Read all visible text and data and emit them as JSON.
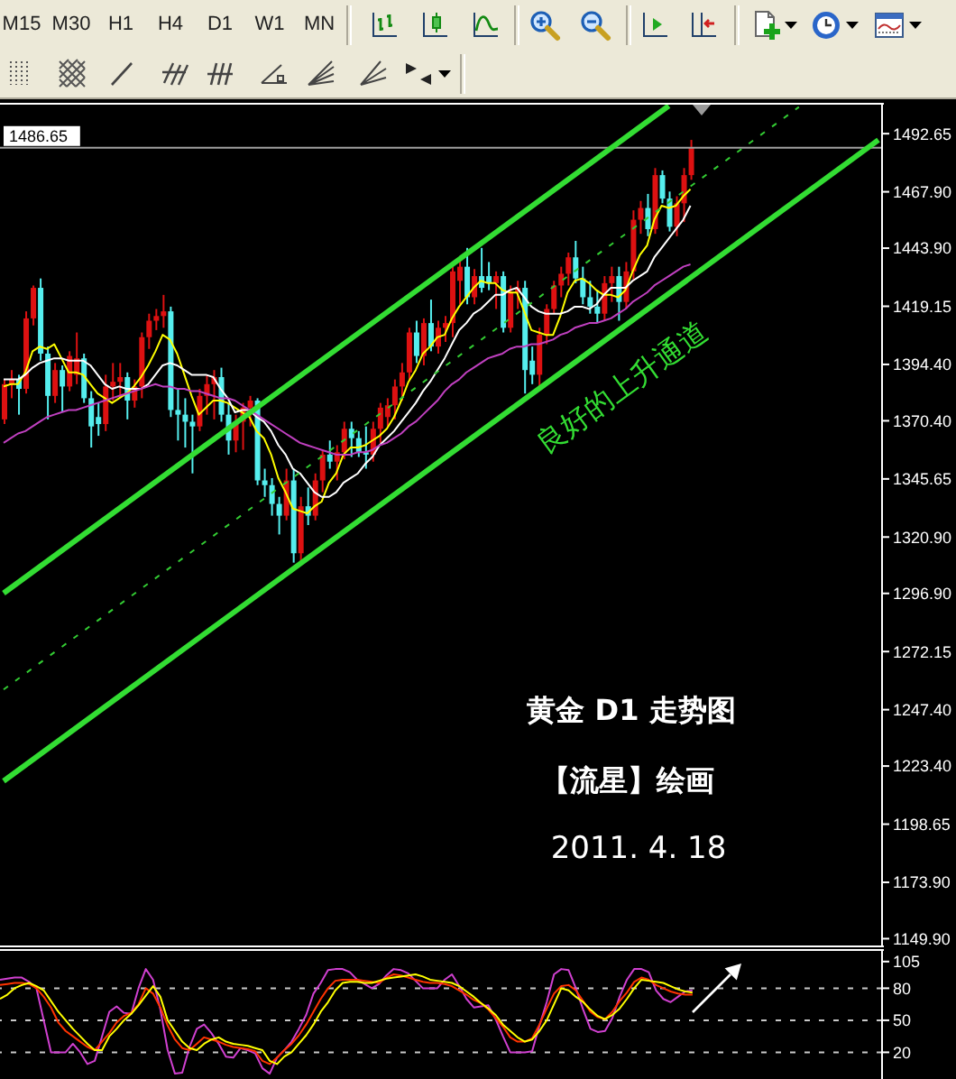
{
  "chart_data": [
    {
      "type": "other",
      "annotations": [
        "M15",
        "M30",
        "H1",
        "H4",
        "D1",
        "W1",
        "MN"
      ]
    },
    {
      "type": "candlestick",
      "categories": [
        null,
        null,
        null,
        null,
        null,
        null,
        null,
        null,
        null,
        null,
        null,
        null,
        null,
        null,
        null,
        null,
        null,
        null,
        null,
        null,
        null,
        null,
        null,
        null,
        null,
        null,
        null,
        null,
        null,
        null,
        null,
        null,
        null,
        null,
        null,
        null,
        null,
        null,
        null,
        null,
        null,
        null,
        null,
        null,
        null,
        null,
        null,
        null,
        null,
        null,
        null,
        null,
        null,
        null,
        null,
        null,
        null,
        null,
        null,
        null,
        null,
        null,
        null,
        null,
        null,
        null,
        null,
        null,
        null,
        null,
        null,
        null,
        null,
        null,
        null,
        null,
        null,
        null,
        null,
        null,
        null,
        null,
        null,
        null,
        null,
        null,
        null,
        null,
        null,
        null,
        null,
        null,
        null,
        null,
        null,
        null,
        null,
        null,
        null,
        null,
        null,
        null,
        null,
        null,
        null,
        null,
        null,
        null,
        null,
        null,
        null,
        null,
        null,
        null,
        null,
        null,
        null,
        null,
        null,
        null,
        null,
        null
      ],
      "ohlc": [
        [
          1371,
          1388,
          1369,
          1386
        ],
        [
          1386,
          1392,
          1380,
          1388
        ],
        [
          1388,
          1390,
          1373,
          1384
        ],
        [
          1384,
          1417,
          1382,
          1414
        ],
        [
          1414,
          1428,
          1411,
          1427
        ],
        [
          1427,
          1431,
          1396,
          1399
        ],
        [
          1399,
          1402,
          1371,
          1381
        ],
        [
          1381,
          1395,
          1378,
          1392
        ],
        [
          1392,
          1394,
          1374,
          1385
        ],
        [
          1385,
          1400,
          1383,
          1398
        ],
        [
          1390,
          1408,
          1386,
          1397
        ],
        [
          1397,
          1399,
          1378,
          1380
        ],
        [
          1380,
          1383,
          1359,
          1368
        ],
        [
          1372,
          1378,
          1364,
          1369
        ],
        [
          1369,
          1390,
          1366,
          1385
        ],
        [
          1385,
          1395,
          1379,
          1387
        ],
        [
          1387,
          1395,
          1380,
          1389
        ],
        [
          1389,
          1391,
          1371,
          1379
        ],
        [
          1379,
          1388,
          1376,
          1385
        ],
        [
          1385,
          1408,
          1380,
          1406
        ],
        [
          1406,
          1416,
          1401,
          1413
        ],
        [
          1413,
          1418,
          1409,
          1415
        ],
        [
          1415,
          1424,
          1410,
          1417
        ],
        [
          1417,
          1419,
          1372,
          1375
        ],
        [
          1375,
          1384,
          1362,
          1373
        ],
        [
          1373,
          1380,
          1359,
          1370
        ],
        [
          1370,
          1373,
          1348,
          1368
        ],
        [
          1368,
          1384,
          1366,
          1381
        ],
        [
          1381,
          1390,
          1373,
          1386
        ],
        [
          1386,
          1392,
          1371,
          1389
        ],
        [
          1389,
          1393,
          1370,
          1373
        ],
        [
          1373,
          1378,
          1356,
          1362
        ],
        [
          1362,
          1373,
          1357,
          1370
        ],
        [
          1370,
          1378,
          1358,
          1376
        ],
        [
          1376,
          1381,
          1368,
          1379
        ],
        [
          1379,
          1380,
          1343,
          1345
        ],
        [
          1345,
          1350,
          1338,
          1343
        ],
        [
          1343,
          1346,
          1330,
          1335
        ],
        [
          1335,
          1338,
          1322,
          1330
        ],
        [
          1330,
          1350,
          1328,
          1345
        ],
        [
          1345,
          1350,
          1310,
          1314
        ],
        [
          1314,
          1338,
          1309,
          1334
        ],
        [
          1334,
          1342,
          1326,
          1330
        ],
        [
          1330,
          1348,
          1328,
          1345
        ],
        [
          1345,
          1358,
          1340,
          1356
        ],
        [
          1356,
          1362,
          1350,
          1353
        ],
        [
          1353,
          1360,
          1345,
          1357
        ],
        [
          1357,
          1370,
          1354,
          1367
        ],
        [
          1367,
          1370,
          1355,
          1363
        ],
        [
          1363,
          1366,
          1355,
          1357
        ],
        [
          1357,
          1368,
          1350,
          1356
        ],
        [
          1356,
          1370,
          1353,
          1367
        ],
        [
          1367,
          1378,
          1361,
          1376
        ],
        [
          1372,
          1380,
          1368,
          1377
        ],
        [
          1377,
          1388,
          1371,
          1385
        ],
        [
          1385,
          1395,
          1379,
          1391
        ],
        [
          1391,
          1410,
          1388,
          1408
        ],
        [
          1408,
          1413,
          1395,
          1398
        ],
        [
          1398,
          1414,
          1394,
          1412
        ],
        [
          1412,
          1422,
          1400,
          1402
        ],
        [
          1402,
          1413,
          1399,
          1410
        ],
        [
          1410,
          1415,
          1404,
          1412
        ],
        [
          1412,
          1436,
          1406,
          1434
        ],
        [
          1430,
          1440,
          1420,
          1436
        ],
        [
          1436,
          1444,
          1420,
          1423
        ],
        [
          1423,
          1435,
          1420,
          1432
        ],
        [
          1432,
          1444,
          1425,
          1427
        ],
        [
          1432,
          1438,
          1426,
          1429
        ],
        [
          1429,
          1434,
          1418,
          1432
        ],
        [
          1432,
          1434,
          1408,
          1410
        ],
        [
          1410,
          1428,
          1408,
          1425
        ],
        [
          1425,
          1430,
          1418,
          1427
        ],
        [
          1427,
          1430,
          1382,
          1392
        ],
        [
          1396,
          1402,
          1386,
          1390
        ],
        [
          1390,
          1410,
          1385,
          1407
        ],
        [
          1407,
          1420,
          1403,
          1418
        ],
        [
          1418,
          1430,
          1416,
          1428
        ],
        [
          1428,
          1436,
          1423,
          1433
        ],
        [
          1433,
          1442,
          1428,
          1440
        ],
        [
          1440,
          1447,
          1429,
          1431
        ],
        [
          1431,
          1436,
          1420,
          1423
        ],
        [
          1423,
          1430,
          1416,
          1419
        ],
        [
          1419,
          1426,
          1412,
          1416
        ],
        [
          1416,
          1432,
          1413,
          1429
        ],
        [
          1429,
          1436,
          1421,
          1432
        ],
        [
          1432,
          1436,
          1413,
          1421
        ],
        [
          1421,
          1438,
          1418,
          1434
        ],
        [
          1434,
          1460,
          1430,
          1456
        ],
        [
          1456,
          1464,
          1450,
          1461
        ],
        [
          1461,
          1467,
          1449,
          1452
        ],
        [
          1452,
          1478,
          1450,
          1475
        ],
        [
          1475,
          1477,
          1463,
          1465
        ],
        [
          1465,
          1468,
          1451,
          1453
        ],
        [
          1453,
          1466,
          1449,
          1463
        ],
        [
          1463,
          1478,
          1455,
          1475
        ],
        [
          1475,
          1490,
          1473,
          1486.65
        ],
        null,
        null,
        null,
        null,
        null,
        null,
        null,
        null,
        null,
        null,
        null,
        null,
        null,
        null,
        null,
        null,
        null,
        null,
        null,
        null,
        null,
        null,
        null,
        null,
        null,
        null
      ],
      "colors": [
        "#dd1111",
        "#dd1111",
        "#55eeee",
        "#dd1111",
        "#dd1111",
        "#55eeee",
        "#55eeee",
        "#dd1111",
        "#55eeee",
        "#dd1111",
        "#dd1111",
        "#55eeee",
        "#55eeee",
        "#55eeee",
        "#dd1111",
        "#dd1111",
        "#dd1111",
        "#55eeee",
        "#dd1111",
        "#dd1111",
        "#dd1111",
        "#dd1111",
        "#dd1111",
        "#55eeee",
        "#55eeee",
        "#55eeee",
        "#55eeee",
        "#dd1111",
        "#dd1111",
        "#dd1111",
        "#55eeee",
        "#55eeee",
        "#dd1111",
        "#dd1111",
        "#dd1111",
        "#55eeee",
        "#55eeee",
        "#55eeee",
        "#55eeee",
        "#dd1111",
        "#55eeee",
        "#dd1111",
        "#55eeee",
        "#dd1111",
        "#dd1111",
        "#55eeee",
        "#dd1111",
        "#dd1111",
        "#55eeee",
        "#55eeee",
        "#55eeee",
        "#dd1111",
        "#dd1111",
        "#dd1111",
        "#dd1111",
        "#dd1111",
        "#dd1111",
        "#55eeee",
        "#dd1111",
        "#55eeee",
        "#dd1111",
        "#dd1111",
        "#dd1111",
        "#dd1111",
        "#55eeee",
        "#dd1111",
        "#55eeee",
        "#55eeee",
        "#dd1111",
        "#55eeee",
        "#dd1111",
        "#dd1111",
        "#55eeee",
        "#55eeee",
        "#dd1111",
        "#dd1111",
        "#dd1111",
        "#dd1111",
        "#dd1111",
        "#55eeee",
        "#55eeee",
        "#55eeee",
        "#55eeee",
        "#dd1111",
        "#dd1111",
        "#55eeee",
        "#dd1111",
        "#dd1111",
        "#dd1111",
        "#55eeee",
        "#dd1111",
        "#55eeee",
        "#55eeee",
        "#dd1111",
        "#dd1111",
        "#dd1111",
        null,
        null,
        null,
        null,
        null,
        null,
        null,
        null,
        null,
        null,
        null,
        null,
        null,
        null,
        null,
        null,
        null,
        null,
        null,
        null,
        null,
        null,
        null,
        null,
        null,
        null
      ],
      "series": [
        {
          "type": "line",
          "color": "#ffff00",
          "values": [
            1385,
            1386,
            1386,
            1391,
            1400,
            1402,
            1401,
            1403,
            1397,
            1391,
            1391,
            1390,
            1386,
            1382,
            1380,
            1378,
            1380,
            1382,
            1385,
            1389,
            1394,
            1400,
            1407,
            1405,
            1399,
            1390,
            1381,
            1373,
            1376,
            1379,
            1379,
            1378,
            1376,
            1374,
            1372,
            1366,
            1363,
            1356,
            1346,
            1340,
            1333,
            1332,
            1331,
            1334,
            1336,
            1344,
            1348,
            1356,
            1359,
            1359,
            1360,
            1362,
            1364,
            1367,
            1372,
            1379,
            1387,
            1392,
            1399,
            1402,
            1406,
            1407,
            1414,
            1419,
            1423,
            1427,
            1430,
            1429,
            1429,
            1426,
            1425,
            1425,
            1417,
            1409,
            1408,
            1407,
            1407,
            1415,
            1425,
            1430,
            1431,
            1429,
            1426,
            1424,
            1424,
            1423,
            1426,
            1434,
            1441,
            1445,
            1456,
            1462,
            1461,
            1462,
            1466,
            1469,
            null,
            null,
            null,
            null,
            null,
            null,
            null,
            null,
            null,
            null,
            null,
            null,
            null,
            null,
            null,
            null,
            null,
            null,
            null,
            null,
            null,
            null,
            null,
            null,
            null,
            null
          ]
        },
        {
          "type": "line",
          "color": "#ffffff",
          "values": [
            1388,
            1388,
            1388,
            1390,
            1393,
            1395,
            1396,
            1397,
            1397,
            1396,
            1396,
            1396,
            1394,
            1390,
            1386,
            1384,
            1385,
            1384,
            1384,
            1384,
            1386,
            1390,
            1394,
            1395,
            1394,
            1392,
            1390,
            1390,
            1390,
            1389,
            1384,
            1380,
            1374,
            1375,
            1375,
            1372,
            1370,
            1366,
            1360,
            1356,
            1350,
            1348,
            1344,
            1340,
            1338,
            1338,
            1340,
            1344,
            1346,
            1348,
            1352,
            1355,
            1360,
            1363,
            1366,
            1370,
            1374,
            1378,
            1383,
            1387,
            1392,
            1397,
            1403,
            1409,
            1412,
            1416,
            1418,
            1421,
            1424,
            1424,
            1426,
            1427,
            1423,
            1419,
            1417,
            1416,
            1416,
            1416,
            1417,
            1419,
            1419,
            1418,
            1420,
            1424,
            1427,
            1427,
            1427,
            1430,
            1432,
            1434,
            1440,
            1444,
            1448,
            1452,
            1456,
            1462,
            null,
            null,
            null,
            null,
            null,
            null,
            null,
            null,
            null,
            null,
            null,
            null,
            null,
            null,
            null,
            null,
            null,
            null,
            null,
            null,
            null,
            null,
            null,
            null,
            null,
            null
          ]
        },
        {
          "type": "line",
          "color": "#c040c0",
          "values": [
            1361,
            1363,
            1365,
            1366,
            1368,
            1370,
            1372,
            1373,
            1374,
            1375,
            1375,
            1376,
            1377,
            1378,
            1379,
            1380,
            1381,
            1382,
            1383,
            1384,
            1385,
            1386,
            1385,
            1385,
            1384,
            1384,
            1383,
            1383,
            1382,
            1381,
            1380,
            1380,
            1379,
            1377,
            1375,
            1373,
            1371,
            1369,
            1367,
            1365,
            1363,
            1361,
            1360,
            1359,
            1358,
            1357,
            1356,
            1356,
            1356,
            1357,
            1357,
            1358,
            1360,
            1361,
            1363,
            1365,
            1368,
            1370,
            1373,
            1376,
            1379,
            1383,
            1386,
            1388,
            1391,
            1393,
            1395,
            1397,
            1398,
            1399,
            1401,
            1402,
            1402,
            1403,
            1403,
            1404,
            1405,
            1407,
            1408,
            1410,
            1411,
            1412,
            1412,
            1413,
            1414,
            1416,
            1418,
            1421,
            1423,
            1425,
            1428,
            1430,
            1432,
            1434,
            1436,
            1437,
            null,
            null,
            null,
            null,
            null,
            null,
            null,
            null,
            null,
            null,
            null,
            null,
            null,
            null,
            null,
            null,
            null,
            null,
            null,
            null,
            null,
            null,
            null,
            null,
            null,
            null
          ]
        },
        {
          "type": "line",
          "color": "#33dd33",
          "values": [
            1297,
            null,
            null,
            null,
            null,
            null,
            null,
            null,
            null,
            null,
            null,
            null,
            null,
            null,
            null,
            null,
            null,
            null,
            null,
            null,
            null,
            null,
            null,
            null,
            null,
            null,
            null,
            null,
            null,
            null,
            null,
            null,
            null,
            null,
            null,
            null,
            null,
            null,
            null,
            null,
            null,
            null,
            null,
            null,
            null,
            null,
            null,
            null,
            null,
            null,
            null,
            null,
            null,
            null,
            null,
            null,
            null,
            null,
            null,
            null,
            null,
            null,
            null,
            null,
            null,
            null,
            null,
            null,
            null,
            null,
            null,
            null,
            null,
            null,
            null,
            null,
            null,
            null,
            null,
            null,
            null,
            null,
            null,
            null,
            null,
            null,
            null,
            null,
            null,
            null,
            null,
            null,
            1504.5,
            null,
            null,
            null,
            null,
            null,
            null,
            null,
            null,
            null,
            null,
            null,
            null,
            null,
            null,
            null,
            null,
            null,
            null,
            null,
            null,
            null,
            null,
            null,
            null,
            null,
            null,
            null,
            null,
            null
          ]
        },
        {
          "type": "line",
          "color": "#33dd33",
          "values": [
            1217,
            null,
            null,
            null,
            null,
            null,
            null,
            null,
            null,
            null,
            null,
            null,
            null,
            null,
            null,
            null,
            null,
            null,
            null,
            null,
            null,
            null,
            null,
            null,
            null,
            null,
            null,
            null,
            null,
            null,
            null,
            null,
            null,
            null,
            null,
            null,
            null,
            null,
            null,
            null,
            null,
            null,
            null,
            null,
            null,
            null,
            null,
            null,
            null,
            null,
            null,
            null,
            null,
            null,
            null,
            null,
            null,
            null,
            null,
            null,
            null,
            null,
            null,
            null,
            null,
            null,
            null,
            null,
            null,
            null,
            null,
            null,
            null,
            null,
            null,
            null,
            null,
            null,
            null,
            null,
            null,
            null,
            null,
            null,
            null,
            null,
            null,
            null,
            null,
            null,
            null,
            null,
            null,
            null,
            null,
            null,
            null,
            null,
            null,
            null,
            null,
            null,
            null,
            null,
            null,
            null,
            null,
            null,
            null,
            null,
            null,
            null,
            null,
            null,
            null,
            null,
            null,
            null,
            null,
            null,
            null,
            1490
          ]
        },
        {
          "type": "line",
          "color": "#33cc33",
          "line_style": "dashed",
          "values": [
            1256,
            null,
            null,
            null,
            null,
            null,
            null,
            null,
            null,
            null,
            null,
            null,
            null,
            null,
            null,
            null,
            null,
            null,
            null,
            null,
            null,
            null,
            null,
            null,
            null,
            null,
            null,
            null,
            null,
            null,
            null,
            null,
            null,
            null,
            null,
            null,
            null,
            null,
            null,
            null,
            null,
            null,
            null,
            null,
            null,
            null,
            null,
            null,
            null,
            null,
            null,
            null,
            null,
            null,
            null,
            null,
            null,
            null,
            null,
            null,
            null,
            null,
            null,
            null,
            null,
            null,
            null,
            null,
            null,
            null,
            null,
            null,
            null,
            null,
            null,
            null,
            null,
            null,
            null,
            null,
            null,
            null,
            null,
            null,
            null,
            null,
            null,
            null,
            null,
            null,
            null,
            null,
            null,
            null,
            null,
            null,
            null,
            null,
            null,
            null,
            null,
            null,
            null,
            null,
            null,
            null,
            null,
            null,
            null,
            null,
            1504,
            null,
            null,
            null,
            null,
            null,
            null,
            null,
            null,
            null,
            null,
            null
          ]
        }
      ],
      "ylim": [
        1147,
        1505
      ],
      "yticks": [
        {
          "value": 1149.9,
          "label": "1149.90"
        },
        {
          "value": 1173.9,
          "label": "1173.90"
        },
        1198.65,
        {
          "value": 1223.4,
          "label": "1223.40"
        },
        {
          "value": 1247.4,
          "label": "1247.40"
        },
        1272.15,
        {
          "value": 1296.9,
          "label": "1296.90"
        },
        {
          "value": 1320.9,
          "label": "1320.90"
        },
        1345.65,
        {
          "value": 1370.4,
          "label": "1370.40"
        },
        {
          "value": 1394.4,
          "label": "1394.40"
        },
        1419.15,
        {
          "value": 1443.9,
          "label": "1443.90"
        },
        {
          "value": 1467.9,
          "label": "1467.90"
        },
        1492.65
      ],
      "ref_lines": [
        {
          "axis": "y",
          "value": 1486.65,
          "label": "1486.65",
          "color": "#a0a0a0"
        }
      ],
      "annotations": [
        "良好的上升通道",
        "黄金 D1 走势图",
        "【流星】绘画",
        "2011. 4. 18"
      ]
    },
    {
      "type": "line",
      "categories": [
        null,
        null,
        null,
        null,
        null,
        null,
        null,
        null,
        null,
        null,
        null,
        null,
        null,
        null,
        null,
        null,
        null,
        null,
        null,
        null,
        null,
        null,
        null,
        null,
        null,
        null,
        null,
        null,
        null,
        null,
        null,
        null,
        null,
        null,
        null,
        null,
        null,
        null,
        null,
        null,
        null,
        null,
        null,
        null,
        null,
        null,
        null,
        null,
        null,
        null,
        null,
        null,
        null,
        null,
        null,
        null,
        null,
        null,
        null,
        null,
        null,
        null,
        null,
        null,
        null,
        null,
        null,
        null,
        null,
        null,
        null,
        null,
        null,
        null,
        null,
        null,
        null,
        null,
        null,
        null,
        null,
        null,
        null,
        null,
        null,
        null,
        null,
        null,
        null,
        null,
        null,
        null,
        null,
        null,
        null,
        null,
        null,
        null,
        null,
        null,
        null,
        null,
        null,
        null,
        null,
        null,
        null,
        null,
        null,
        null,
        null,
        null,
        null,
        null,
        null,
        null,
        null,
        null,
        null,
        null,
        null,
        null
      ],
      "series": [
        {
          "color": "#d040d0",
          "values": [
            88,
            89,
            90,
            90,
            86,
            80,
            50,
            20,
            20,
            20,
            28,
            20,
            9,
            12,
            35,
            58,
            63,
            57,
            56,
            80,
            98,
            88,
            60,
            22,
            0,
            1,
            25,
            42,
            46,
            38,
            28,
            16,
            15,
            24,
            22,
            19,
            5,
            0,
            15,
            22,
            30,
            42,
            55,
            75,
            85,
            97,
            98,
            98,
            95,
            88,
            84,
            80,
            84,
            92,
            98,
            97,
            94,
            87,
            80,
            80,
            80,
            88,
            93,
            82,
            70,
            62,
            63,
            64,
            51,
            35,
            20,
            20,
            20,
            21,
            45,
            67,
            93,
            98,
            97,
            80,
            60,
            42,
            39,
            40,
            52,
            72,
            88,
            98,
            98,
            95,
            78,
            70,
            67,
            72,
            77,
            78,
            null,
            null,
            null,
            null,
            null,
            null,
            null,
            null,
            null,
            null,
            null,
            null,
            null,
            null,
            null,
            null,
            null,
            null,
            null,
            null,
            null,
            null,
            null,
            null,
            null,
            null
          ]
        },
        {
          "color": "#ff3300",
          "values": [
            83,
            84,
            85,
            85,
            84,
            80,
            72,
            62,
            48,
            40,
            35,
            30,
            25,
            22,
            30,
            38,
            48,
            54,
            57,
            65,
            80,
            75,
            62,
            45,
            32,
            24,
            22,
            28,
            34,
            32,
            30,
            27,
            25,
            24,
            23,
            21,
            12,
            9,
            15,
            22,
            28,
            36,
            46,
            58,
            70,
            80,
            87,
            88,
            88,
            88,
            87,
            86,
            85,
            90,
            93,
            92,
            90,
            88,
            86,
            85,
            85,
            84,
            82,
            78,
            74,
            69,
            66,
            60,
            52,
            44,
            34,
            30,
            30,
            33,
            46,
            61,
            75,
            82,
            83,
            78,
            68,
            58,
            53,
            51,
            58,
            68,
            76,
            86,
            90,
            88,
            83,
            80,
            77,
            75,
            74,
            74,
            null,
            null,
            null,
            null,
            null,
            null,
            null,
            null,
            null,
            null,
            null,
            null,
            null,
            null,
            null,
            null,
            null,
            null,
            null,
            null,
            null,
            null,
            null,
            null,
            null,
            null
          ]
        },
        {
          "color": "#ffff00",
          "values": [
            70,
            74,
            80,
            83,
            85,
            82,
            78,
            68,
            58,
            50,
            42,
            35,
            28,
            22,
            22,
            35,
            42,
            50,
            56,
            64,
            73,
            82,
            72,
            50,
            40,
            30,
            24,
            22,
            28,
            32,
            34,
            30,
            28,
            27,
            26,
            24,
            22,
            12,
            9,
            16,
            20,
            28,
            36,
            46,
            58,
            67,
            78,
            85,
            86,
            86,
            85,
            85,
            87,
            89,
            90,
            91,
            92,
            93,
            91,
            88,
            87,
            86,
            85,
            82,
            77,
            72,
            66,
            61,
            55,
            46,
            40,
            34,
            30,
            32,
            40,
            50,
            65,
            80,
            78,
            72,
            67,
            60,
            54,
            51,
            55,
            61,
            70,
            80,
            88,
            87,
            86,
            85,
            82,
            79,
            77,
            76,
            null,
            null,
            null,
            null,
            null,
            null,
            null,
            null,
            null,
            null,
            null,
            null,
            null,
            null,
            null,
            null,
            null,
            null,
            null,
            null,
            null,
            null,
            null,
            null,
            null,
            null
          ]
        }
      ],
      "ylim": [
        -5,
        115
      ],
      "yticks": [
        20,
        50,
        80,
        105
      ],
      "ref_lines": [
        {
          "axis": "y",
          "value": 80,
          "color": "#c8c8c8",
          "line_style": "dashed"
        },
        {
          "axis": "y",
          "value": 50,
          "color": "#c8c8c8",
          "line_style": "dashed"
        },
        {
          "axis": "y",
          "value": 20,
          "color": "#c8c8c8",
          "line_style": "dashed"
        }
      ]
    }
  ]
}
